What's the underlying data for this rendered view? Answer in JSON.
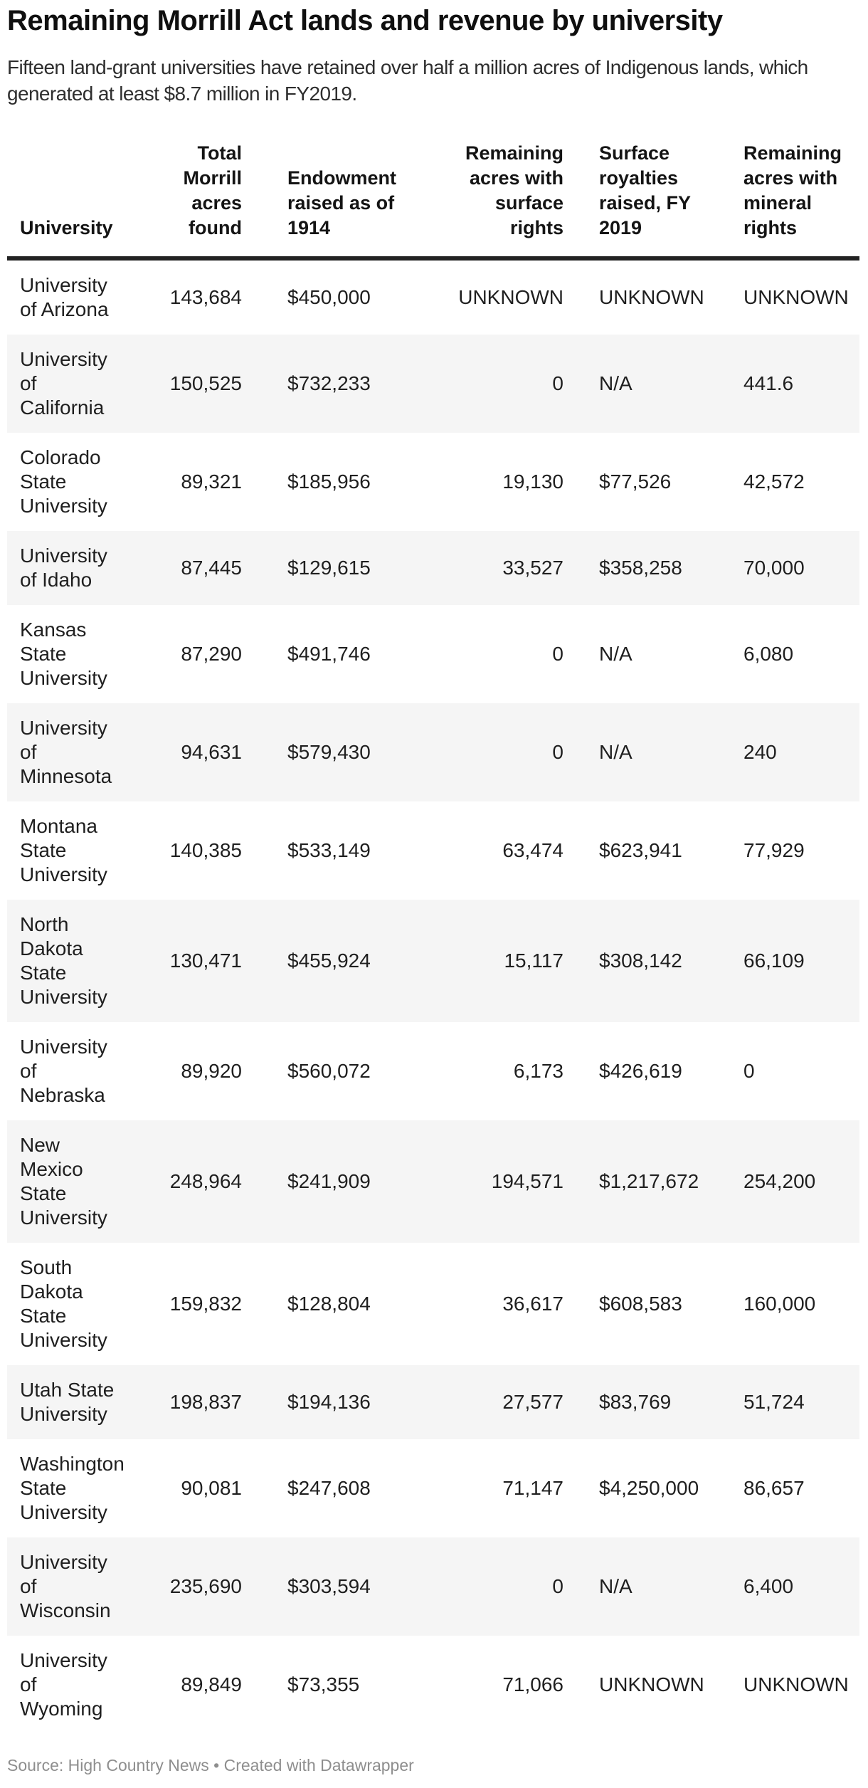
{
  "header": {
    "title": "Remaining Morrill Act lands and revenue by university",
    "subtitle_line1": "Fifteen land-grant universities have retained over half a million acres of Indigenous lands, which",
    "subtitle_line2": "generated at least $8.7 million in FY2019."
  },
  "table": {
    "columns": [
      {
        "key": "university",
        "label_lines": [
          "University"
        ],
        "align": "left"
      },
      {
        "key": "acres_found",
        "label_lines": [
          "Total",
          "Morrill",
          "acres",
          "found"
        ],
        "align": "right"
      },
      {
        "key": "endowment",
        "label_lines": [
          "Endowment",
          "raised as of",
          "1914"
        ],
        "align": "left"
      },
      {
        "key": "surface_acres",
        "label_lines": [
          "Remaining",
          "acres with",
          "surface",
          "rights"
        ],
        "align": "right"
      },
      {
        "key": "royalties",
        "label_lines": [
          "Surface",
          "royalties",
          "raised, FY",
          "2019"
        ],
        "align": "left"
      },
      {
        "key": "mineral_acres",
        "label_lines": [
          "Remaining",
          "acres with",
          "mineral",
          "rights"
        ],
        "align": "left"
      }
    ],
    "rows": [
      {
        "university_lines": [
          "University",
          "of Arizona"
        ],
        "values": {
          "acres_found": "143,684",
          "endowment": "$450,000",
          "surface_acres": "UNKNOWN",
          "royalties": "UNKNOWN",
          "mineral_acres": "UNKNOWN"
        }
      },
      {
        "university_lines": [
          "University",
          "of",
          "California"
        ],
        "values": {
          "acres_found": "150,525",
          "endowment": "$732,233",
          "surface_acres": "0",
          "royalties": "N/A",
          "mineral_acres": "441.6"
        }
      },
      {
        "university_lines": [
          "Colorado",
          "State",
          "University"
        ],
        "values": {
          "acres_found": "89,321",
          "endowment": "$185,956",
          "surface_acres": "19,130",
          "royalties": "$77,526",
          "mineral_acres": "42,572"
        }
      },
      {
        "university_lines": [
          "University",
          "of Idaho"
        ],
        "values": {
          "acres_found": "87,445",
          "endowment": "$129,615",
          "surface_acres": "33,527",
          "royalties": "$358,258",
          "mineral_acres": "70,000"
        }
      },
      {
        "university_lines": [
          "Kansas",
          "State",
          "University"
        ],
        "values": {
          "acres_found": "87,290",
          "endowment": "$491,746",
          "surface_acres": "0",
          "royalties": "N/A",
          "mineral_acres": "6,080"
        }
      },
      {
        "university_lines": [
          "University",
          "of",
          "Minnesota"
        ],
        "values": {
          "acres_found": "94,631",
          "endowment": "$579,430",
          "surface_acres": "0",
          "royalties": "N/A",
          "mineral_acres": "240"
        }
      },
      {
        "university_lines": [
          "Montana",
          "State",
          "University"
        ],
        "values": {
          "acres_found": "140,385",
          "endowment": "$533,149",
          "surface_acres": "63,474",
          "royalties": "$623,941",
          "mineral_acres": "77,929"
        }
      },
      {
        "university_lines": [
          "North",
          "Dakota",
          "State",
          "University"
        ],
        "values": {
          "acres_found": "130,471",
          "endowment": "$455,924",
          "surface_acres": "15,117",
          "royalties": "$308,142",
          "mineral_acres": "66,109"
        }
      },
      {
        "university_lines": [
          "University",
          "of",
          "Nebraska"
        ],
        "values": {
          "acres_found": "89,920",
          "endowment": "$560,072",
          "surface_acres": "6,173",
          "royalties": "$426,619",
          "mineral_acres": "0"
        }
      },
      {
        "university_lines": [
          "New",
          "Mexico",
          "State",
          "University"
        ],
        "values": {
          "acres_found": "248,964",
          "endowment": "$241,909",
          "surface_acres": "194,571",
          "royalties": "$1,217,672",
          "mineral_acres": "254,200"
        }
      },
      {
        "university_lines": [
          "South",
          "Dakota",
          "State",
          "University"
        ],
        "values": {
          "acres_found": "159,832",
          "endowment": "$128,804",
          "surface_acres": "36,617",
          "royalties": "$608,583",
          "mineral_acres": "160,000"
        }
      },
      {
        "university_lines": [
          "Utah State",
          "University"
        ],
        "values": {
          "acres_found": "198,837",
          "endowment": "$194,136",
          "surface_acres": "27,577",
          "royalties": "$83,769",
          "mineral_acres": "51,724"
        }
      },
      {
        "university_lines": [
          "Washington",
          "State",
          "University"
        ],
        "values": {
          "acres_found": "90,081",
          "endowment": "$247,608",
          "surface_acres": "71,147",
          "royalties": "$4,250,000",
          "mineral_acres": "86,657"
        }
      },
      {
        "university_lines": [
          "University",
          "of",
          "Wisconsin"
        ],
        "values": {
          "acres_found": "235,690",
          "endowment": "$303,594",
          "surface_acres": "0",
          "royalties": "N/A",
          "mineral_acres": "6,400"
        }
      },
      {
        "university_lines": [
          "University",
          "of",
          "Wyoming"
        ],
        "values": {
          "acres_found": "89,849",
          "endowment": "$73,355",
          "surface_acres": "71,066",
          "royalties": "UNKNOWN",
          "mineral_acres": "UNKNOWN"
        }
      }
    ]
  },
  "footer": {
    "text": "Source: High Country News • Created with Datawrapper"
  },
  "colors": {
    "stripe": "#f5f5f5",
    "header_border": "#222222",
    "title_text": "#0f0f0f",
    "body_text": "#1f1f1f",
    "footer_text": "#8e8e8e"
  },
  "chart_data": {
    "type": "table",
    "title": "Remaining Morrill Act lands and revenue by university",
    "subtitle": "Fifteen land-grant universities have retained over half a million acres of Indigenous lands, which generated at least $8.7 million in FY2019.",
    "columns": [
      "University",
      "Total Morrill acres found",
      "Endowment raised as of 1914",
      "Remaining acres with surface rights",
      "Surface royalties raised, FY 2019",
      "Remaining acres with mineral rights"
    ],
    "rows": [
      [
        "University of Arizona",
        "143,684",
        "$450,000",
        "UNKNOWN",
        "UNKNOWN",
        "UNKNOWN"
      ],
      [
        "University of California",
        "150,525",
        "$732,233",
        "0",
        "N/A",
        "441.6"
      ],
      [
        "Colorado State University",
        "89,321",
        "$185,956",
        "19,130",
        "$77,526",
        "42,572"
      ],
      [
        "University of Idaho",
        "87,445",
        "$129,615",
        "33,527",
        "$358,258",
        "70,000"
      ],
      [
        "Kansas State University",
        "87,290",
        "$491,746",
        "0",
        "N/A",
        "6,080"
      ],
      [
        "University of Minnesota",
        "94,631",
        "$579,430",
        "0",
        "N/A",
        "240"
      ],
      [
        "Montana State University",
        "140,385",
        "$533,149",
        "63,474",
        "$623,941",
        "77,929"
      ],
      [
        "North Dakota State University",
        "130,471",
        "$455,924",
        "15,117",
        "$308,142",
        "66,109"
      ],
      [
        "University of Nebraska",
        "89,920",
        "$560,072",
        "6,173",
        "$426,619",
        "0"
      ],
      [
        "New Mexico State University",
        "248,964",
        "$241,909",
        "194,571",
        "$1,217,672",
        "254,200"
      ],
      [
        "South Dakota State University",
        "159,832",
        "$128,804",
        "36,617",
        "$608,583",
        "160,000"
      ],
      [
        "Utah State University",
        "198,837",
        "$194,136",
        "27,577",
        "$83,769",
        "51,724"
      ],
      [
        "Washington State University",
        "90,081",
        "$247,608",
        "71,147",
        "$4,250,000",
        "86,657"
      ],
      [
        "University of Wisconsin",
        "235,690",
        "$303,594",
        "0",
        "N/A",
        "6,400"
      ],
      [
        "University of Wyoming",
        "89,849",
        "$73,355",
        "71,066",
        "UNKNOWN",
        "UNKNOWN"
      ]
    ],
    "source_note": "Source: High Country News • Created with Datawrapper",
    "zebra_striping": true,
    "striped_rows": "even (2nd, 4th, ...)"
  }
}
